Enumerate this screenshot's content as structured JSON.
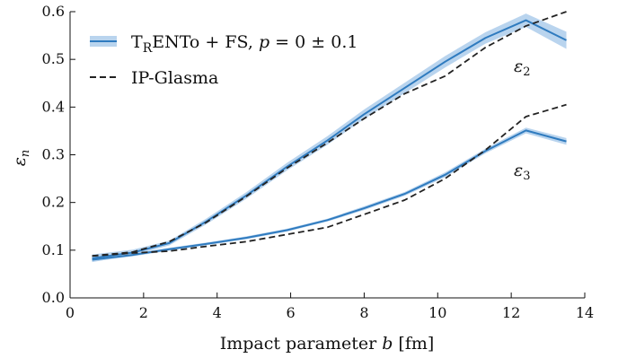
{
  "chart_data": {
    "type": "line",
    "xlabel": "Impact parameter b [fm]",
    "ylabel": "εn",
    "xlim": [
      0,
      14
    ],
    "ylim": [
      0,
      0.6
    ],
    "x_ticks": [
      "0",
      "2",
      "4",
      "6",
      "8",
      "10",
      "12",
      "14"
    ],
    "y_ticks": [
      "0.0",
      "0.1",
      "0.2",
      "0.3",
      "0.4",
      "0.5",
      "0.6"
    ],
    "legend_position": "top-left",
    "grid": false,
    "legend": [
      {
        "label": "TRENTo + FS, p = 0 ± 0.1",
        "style": "solid-with-band",
        "color": "#2f7bbf"
      },
      {
        "label": "IP-Glasma",
        "style": "dashed",
        "color": "#222222"
      }
    ],
    "annotations": [
      {
        "text": "ε2"
      },
      {
        "text": "ε3"
      }
    ],
    "series": [
      {
        "name": "TRENTo + FS, p = 0 ± 0.1",
        "harmonic": "ε2",
        "style": "solid-with-band",
        "color": "#2f7bbf",
        "band_color": "#b9d4ee",
        "x": [
          0.6,
          1.7,
          2.7,
          3.7,
          4.8,
          5.9,
          7.0,
          8.0,
          9.1,
          10.2,
          11.3,
          12.4,
          13.5
        ],
        "y": [
          0.083,
          0.095,
          0.115,
          0.16,
          0.215,
          0.275,
          0.33,
          0.385,
          0.44,
          0.495,
          0.545,
          0.582,
          0.54
        ],
        "band": [
          0.008,
          0.006,
          0.005,
          0.006,
          0.007,
          0.008,
          0.009,
          0.01,
          0.011,
          0.012,
          0.012,
          0.014,
          0.018
        ]
      },
      {
        "name": "TRENTo + FS, p = 0 ± 0.1",
        "harmonic": "ε3",
        "style": "solid-with-band",
        "color": "#2f7bbf",
        "band_color": "#b9d4ee",
        "x": [
          0.6,
          1.7,
          2.7,
          3.7,
          4.8,
          5.9,
          7.0,
          8.0,
          9.1,
          10.2,
          11.3,
          12.4,
          13.5
        ],
        "y": [
          0.08,
          0.09,
          0.102,
          0.113,
          0.126,
          0.142,
          0.163,
          0.188,
          0.218,
          0.258,
          0.308,
          0.351,
          0.328
        ],
        "band": [
          0.004,
          0.003,
          0.003,
          0.003,
          0.003,
          0.003,
          0.003,
          0.004,
          0.004,
          0.005,
          0.005,
          0.006,
          0.007
        ]
      },
      {
        "name": "IP-Glasma",
        "harmonic": "ε2",
        "style": "dashed",
        "color": "#222222",
        "x": [
          0.6,
          1.7,
          2.7,
          3.7,
          4.8,
          5.9,
          7.0,
          8.0,
          9.1,
          10.2,
          11.3,
          12.4,
          13.5
        ],
        "y": [
          0.088,
          0.096,
          0.118,
          0.158,
          0.213,
          0.272,
          0.325,
          0.376,
          0.428,
          0.465,
          0.525,
          0.57,
          0.6
        ]
      },
      {
        "name": "IP-Glasma",
        "harmonic": "ε3",
        "style": "dashed",
        "color": "#222222",
        "x": [
          0.6,
          1.7,
          2.7,
          3.7,
          4.8,
          5.9,
          7.0,
          8.0,
          9.1,
          10.2,
          11.3,
          12.4,
          13.5
        ],
        "y": [
          0.088,
          0.094,
          0.098,
          0.108,
          0.118,
          0.133,
          0.148,
          0.175,
          0.205,
          0.25,
          0.31,
          0.38,
          0.405
        ]
      }
    ]
  }
}
